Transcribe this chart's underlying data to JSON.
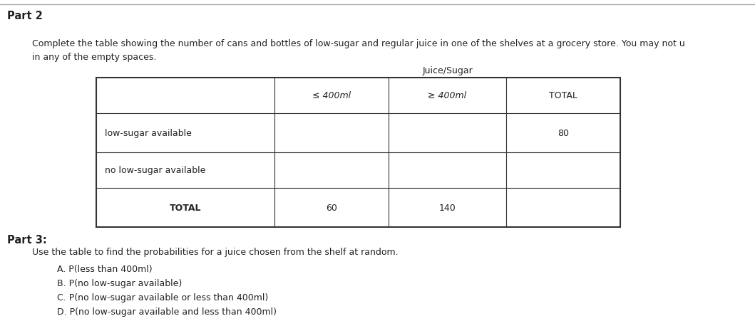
{
  "background_color": "#ffffff",
  "part2_title": "Part 2",
  "part2_desc_line1": "Complete the table showing the number of cans and bottles of low-sugar and regular juice in one of the shelves at a grocery store. You may not u",
  "part2_desc_line2": "in any of the empty spaces.",
  "table_title": "Juice/Sugar",
  "col_headers": [
    "≤ 400ml",
    "≥ 400ml",
    "TOTAL"
  ],
  "row_labels": [
    "low-sugar available",
    "no low-sugar available",
    "TOTAL"
  ],
  "cell_values": {
    "row0_col2": "80",
    "row2_col0": "60",
    "row2_col1": "140"
  },
  "part3_title": "Part 3:",
  "part3_desc": "Use the table to find the probabilities for a juice chosen from the shelf at random.",
  "part3_items": [
    "A. P(less than 400ml)",
    "B. P(no low-sugar available)",
    "C. P(no low-sugar available or less than 400ml)",
    "D. P(no low-sugar available and less than 400ml)"
  ],
  "separator_color": "#aaaaaa",
  "table_border_color": "#333333",
  "text_color": "#222222",
  "font_size_title": 10.5,
  "font_size_body": 9.0,
  "font_size_table": 9.0
}
